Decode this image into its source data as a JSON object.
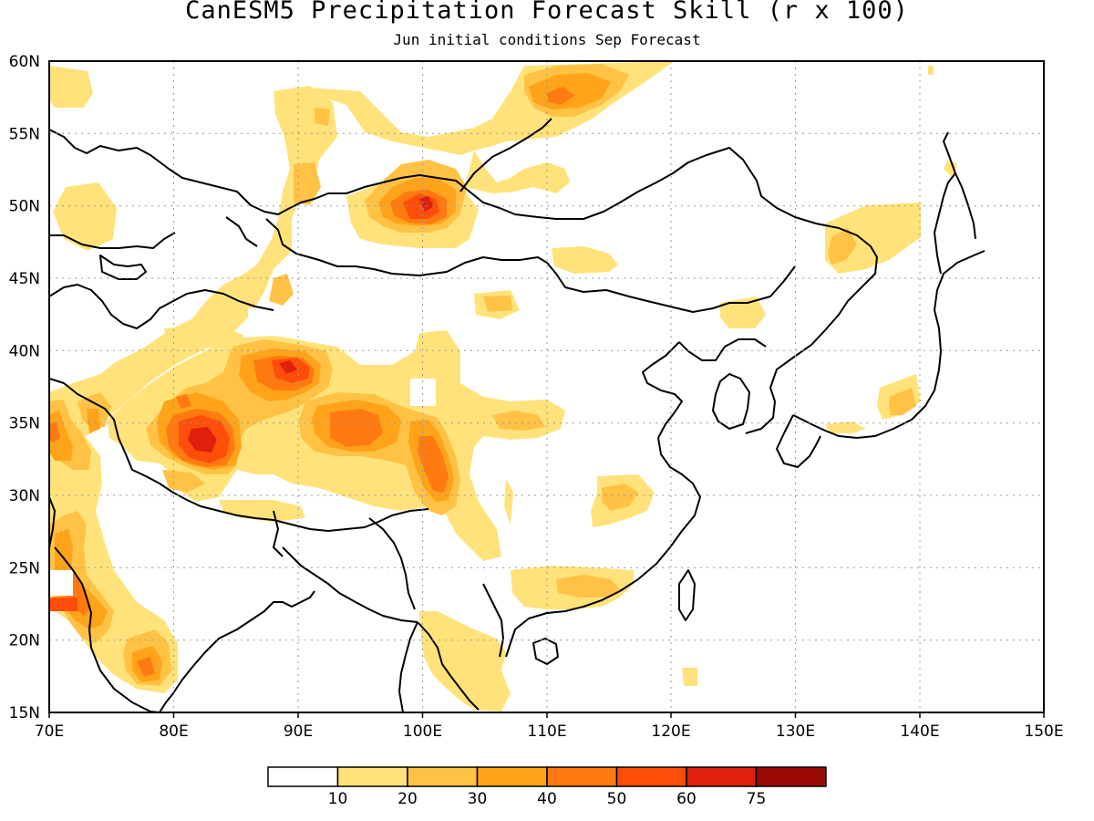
{
  "title": "CanESM5 Precipitation Forecast Skill (r x 100)",
  "subtitle": "Jun initial conditions  Sep Forecast",
  "map": {
    "lon_range": [
      70,
      150
    ],
    "lat_range": [
      15,
      60
    ],
    "lon_ticks": [
      "70E",
      "80E",
      "90E",
      "100E",
      "110E",
      "120E",
      "130E",
      "140E",
      "150E"
    ],
    "lat_ticks": [
      "15N",
      "20N",
      "25N",
      "30N",
      "35N",
      "40N",
      "45N",
      "50N",
      "55N",
      "60N"
    ],
    "grid": "dotted"
  },
  "colorbar": {
    "colors": [
      "#ffffff",
      "#ffe37a",
      "#ffc244",
      "#ffa31a",
      "#ff7a11",
      "#ff4d0a",
      "#e0200a",
      "#9a0a05"
    ],
    "labels": [
      "10",
      "20",
      "30",
      "40",
      "50",
      "60",
      "75"
    ]
  },
  "skill_regions": [
    {
      "lon": 73,
      "lat": 51,
      "level": 1
    },
    {
      "lon": 72,
      "lat": 57.5,
      "level": 1
    },
    {
      "lon": 88,
      "lat": 54,
      "level": 1
    },
    {
      "lon": 100,
      "lat": 50,
      "level": 4
    },
    {
      "lon": 100,
      "lat": 50,
      "level": 6
    },
    {
      "lon": 113,
      "lat": 58,
      "level": 3
    },
    {
      "lon": 138,
      "lat": 48,
      "level": 1
    },
    {
      "lon": 82,
      "lat": 33.5,
      "level": 7
    },
    {
      "lon": 89,
      "lat": 39,
      "level": 6
    },
    {
      "lon": 95,
      "lat": 35,
      "level": 5
    },
    {
      "lon": 102,
      "lat": 32,
      "level": 5
    },
    {
      "lon": 107,
      "lat": 35,
      "level": 1
    },
    {
      "lon": 112,
      "lat": 30,
      "level": 1
    },
    {
      "lon": 112,
      "lat": 23.5,
      "level": 1
    },
    {
      "lon": 75,
      "lat": 23,
      "level": 4
    },
    {
      "lon": 78,
      "lat": 18,
      "level": 4
    },
    {
      "lon": 71,
      "lat": 22,
      "level": 6
    },
    {
      "lon": 139,
      "lat": 36,
      "level": 2
    },
    {
      "lon": 106,
      "lat": 43,
      "level": 2
    }
  ]
}
